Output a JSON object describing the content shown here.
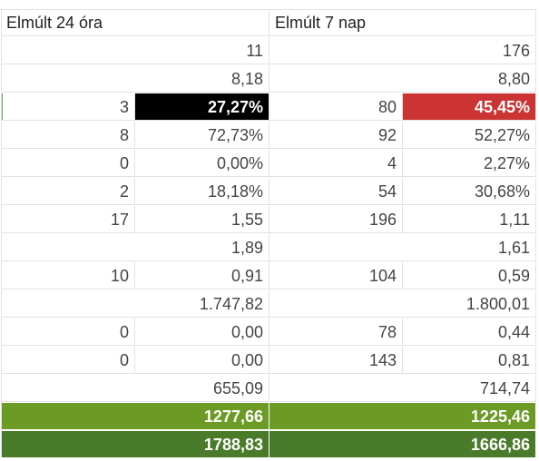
{
  "header": {
    "col_24h": "Elmúlt 24 óra",
    "col_7d": "Elmúlt 7 nap"
  },
  "colors": {
    "black_fill": "#000000",
    "red_fill": "#cc3333",
    "green_total_1": "#6b9a25",
    "green_total_2": "#4a7b2b"
  },
  "rows": [
    {
      "a": "",
      "b": "11",
      "c": "",
      "d": "176"
    },
    {
      "a": "",
      "b": "8,18",
      "c": "",
      "d": "8,80"
    },
    {
      "a": "3",
      "b": "27,27%",
      "c": "80",
      "d": "45,45%"
    },
    {
      "a": "8",
      "b": "72,73%",
      "c": "92",
      "d": "52,27%"
    },
    {
      "a": "0",
      "b": "0,00%",
      "c": "4",
      "d": "2,27%"
    },
    {
      "a": "2",
      "b": "18,18%",
      "c": "54",
      "d": "30,68%"
    },
    {
      "a": "17",
      "b": "1,55",
      "c": "196",
      "d": "1,11"
    },
    {
      "a": "",
      "b": "1,89",
      "c": "",
      "d": "1,61"
    },
    {
      "a": "10",
      "b": "0,91",
      "c": "104",
      "d": "0,59"
    },
    {
      "a": "",
      "b": "1.747,82",
      "c": "",
      "d": "1.800,01"
    },
    {
      "a": "0",
      "b": "0,00",
      "c": "78",
      "d": "0,44"
    },
    {
      "a": "0",
      "b": "0,00",
      "c": "143",
      "d": "0,81"
    },
    {
      "a": "",
      "b": "655,09",
      "c": "",
      "d": "714,74"
    }
  ],
  "totals": [
    {
      "b": "1277,66",
      "d": "1225,46"
    },
    {
      "b": "1788,83",
      "d": "1666,86"
    }
  ]
}
